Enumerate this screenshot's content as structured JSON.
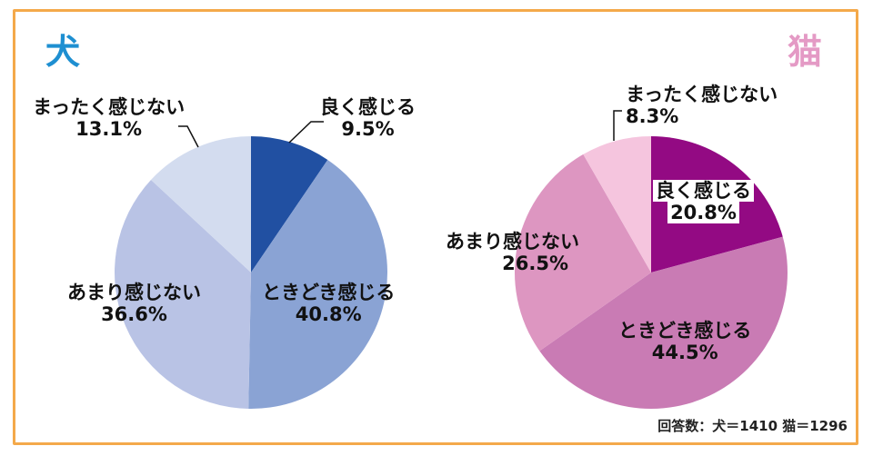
{
  "chart_data": [
    {
      "type": "pie",
      "title": "犬",
      "title_color": "#1e8fd1",
      "start_angle_deg": 0,
      "direction": "clockwise",
      "slices": [
        {
          "label": "良く感じる",
          "value": 9.5,
          "color": "#2150a2"
        },
        {
          "label": "ときどき感じる",
          "value": 40.8,
          "color": "#8aa3d4"
        },
        {
          "label": "あまり感じない",
          "value": 36.6,
          "color": "#b9c3e5"
        },
        {
          "label": "まったく感じない",
          "value": 13.1,
          "color": "#d3dcef"
        }
      ]
    },
    {
      "type": "pie",
      "title": "猫",
      "title_color": "#e49ac5",
      "start_angle_deg": 0,
      "direction": "clockwise",
      "slices": [
        {
          "label": "良く感じる",
          "value": 20.8,
          "color": "#930a83"
        },
        {
          "label": "ときどき感じる",
          "value": 44.5,
          "color": "#c97bb4"
        },
        {
          "label": "あまり感じない",
          "value": 26.5,
          "color": "#dd96c1"
        },
        {
          "label": "まったく感じない",
          "value": 8.3,
          "color": "#f5c5de"
        }
      ]
    }
  ],
  "dog": {
    "title": "犬",
    "labels": [
      {
        "name": "良く感じる",
        "pct": "9.5%"
      },
      {
        "name": "ときどき感じる",
        "pct": "40.8%"
      },
      {
        "name": "あまり感じない",
        "pct": "36.6%"
      },
      {
        "name": "まったく感じない",
        "pct": "13.1%"
      }
    ]
  },
  "cat": {
    "title": "猫",
    "labels": [
      {
        "name": "良く感じる",
        "pct": "20.8%"
      },
      {
        "name": "ときどき感じる",
        "pct": "44.5%"
      },
      {
        "name": "あまり感じない",
        "pct": "26.5%"
      },
      {
        "name": "まったく感じない",
        "pct": "8.3%"
      }
    ]
  },
  "footer": "回答数：犬＝1410 猫＝1296",
  "colors": {
    "frame": "#f4a94a"
  }
}
